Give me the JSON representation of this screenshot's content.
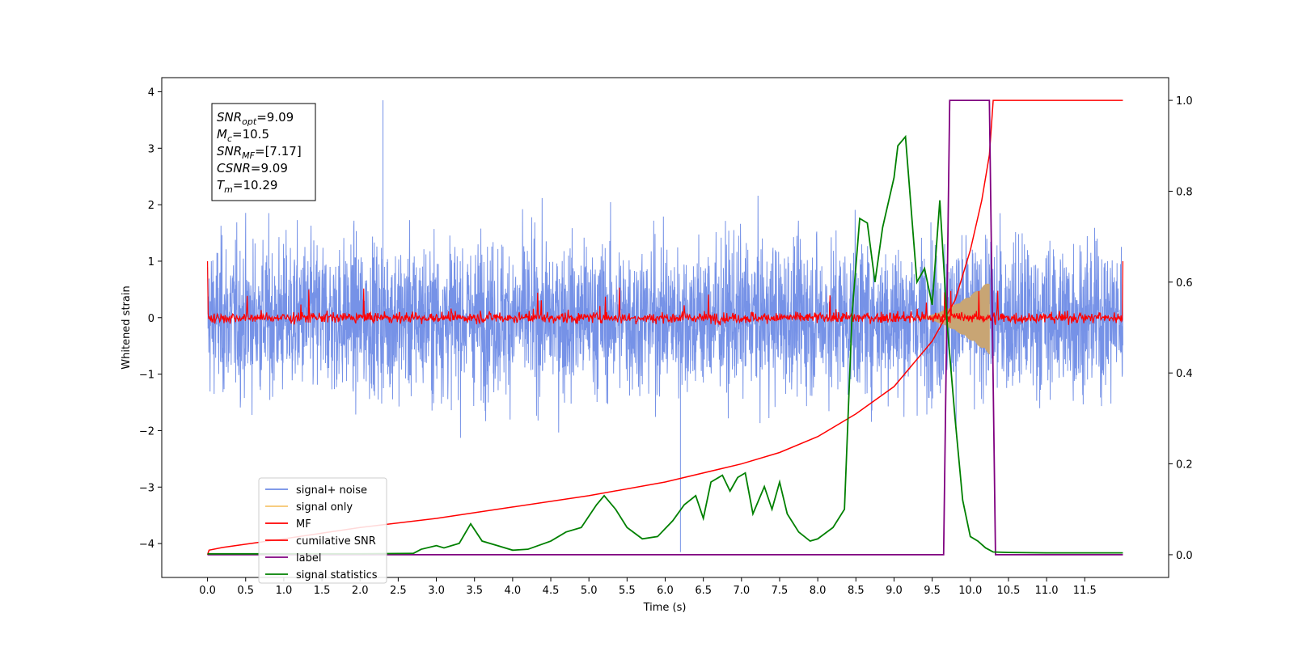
{
  "chart_data": {
    "type": "line",
    "xlabel": "Time (s)",
    "ylabel": "Whitened strain",
    "xlim": [
      -0.6,
      12.6
    ],
    "ylim": [
      -4.6,
      4.25
    ],
    "y2lim": [
      -0.05,
      1.05
    ],
    "xticks": [
      0.0,
      0.5,
      1.0,
      1.5,
      2.0,
      2.5,
      3.0,
      3.5,
      4.0,
      4.5,
      5.0,
      5.5,
      6.0,
      6.5,
      7.0,
      7.5,
      8.0,
      8.5,
      9.0,
      9.5,
      10.0,
      10.5,
      11.0,
      11.5
    ],
    "xtick_labels": [
      "0.0",
      "0.5",
      "1.0",
      "1.5",
      "2.0",
      "2.5",
      "3.0",
      "3.5",
      "4.0",
      "4.5",
      "5.0",
      "5.5",
      "6.0",
      "6.5",
      "7.0",
      "7.5",
      "8.0",
      "8.5",
      "9.0",
      "9.5",
      "10.0",
      "10.5",
      "11.0",
      "11.5"
    ],
    "yticks": [
      4,
      3,
      2,
      1,
      0,
      -1,
      -2,
      -3,
      -4
    ],
    "ytick_labels": [
      "4",
      "3",
      "2",
      "1",
      "0",
      "−1",
      "−2",
      "−3",
      "−4"
    ],
    "y2ticks": [
      1.0,
      0.8,
      0.6,
      0.4,
      0.2,
      0.0
    ],
    "y2tick_labels": [
      "1.0",
      "0.8",
      "0.6",
      "0.4",
      "0.2",
      "0.0"
    ],
    "grid": false,
    "legend_position": "lower-left",
    "legend": [
      {
        "label": "signal+ noise",
        "color": "#6f8ce6"
      },
      {
        "label": "signal only",
        "color": "#f6c56e"
      },
      {
        "label": "MF",
        "color": "#ff0000"
      },
      {
        "label": "cumilative SNR",
        "color": "#ff0000"
      },
      {
        "label": "label",
        "color": "#800080"
      },
      {
        "label": "signal statistics",
        "color": "#008000"
      }
    ],
    "series": [
      {
        "name": "signal+ noise",
        "axis": "left",
        "color": "#6f8ce6",
        "x_range": [
          0.0,
          12.0
        ],
        "approx_envelope": [
          -3.0,
          3.9
        ],
        "notes_values": {
          "peak_time": 2.3,
          "peak_value": 3.85,
          "min_time": 6.2,
          "min_value": -4.15
        }
      },
      {
        "name": "signal only",
        "axis": "left",
        "color": "#c8a574",
        "chirp_start": 9.3,
        "chirp_end": 10.25,
        "chirp_max_amplitude": 0.65
      },
      {
        "name": "MF",
        "axis": "left",
        "color": "#ff0000",
        "x_range": [
          0.0,
          12.0
        ],
        "approx_envelope": [
          -0.2,
          0.55
        ],
        "endpoints_y": 1.0
      },
      {
        "name": "cumilative SNR",
        "axis": "right",
        "color": "#ff0000",
        "x": [
          0.0,
          0.02,
          0.2,
          1.0,
          2.0,
          3.0,
          4.0,
          5.0,
          6.0,
          7.0,
          7.5,
          8.0,
          8.5,
          9.0,
          9.5,
          9.8,
          10.0,
          10.15,
          10.25,
          10.3,
          12.0
        ],
        "y": [
          0.0,
          0.01,
          0.016,
          0.035,
          0.06,
          0.08,
          0.105,
          0.13,
          0.16,
          0.2,
          0.225,
          0.26,
          0.31,
          0.37,
          0.47,
          0.56,
          0.67,
          0.78,
          0.88,
          1.0,
          1.0
        ]
      },
      {
        "name": "label",
        "axis": "right",
        "color": "#800080",
        "x": [
          0.0,
          9.65,
          9.73,
          10.25,
          10.33,
          12.0
        ],
        "y": [
          0.0,
          0.0,
          1.0,
          1.0,
          0.0,
          0.0
        ]
      },
      {
        "name": "signal statistics",
        "axis": "right",
        "color": "#008000",
        "x": [
          0.0,
          1.0,
          2.0,
          2.7,
          2.8,
          3.0,
          3.1,
          3.3,
          3.45,
          3.6,
          3.8,
          4.0,
          4.2,
          4.5,
          4.7,
          4.9,
          5.1,
          5.2,
          5.35,
          5.5,
          5.7,
          5.9,
          6.1,
          6.25,
          6.4,
          6.5,
          6.6,
          6.75,
          6.85,
          6.95,
          7.05,
          7.15,
          7.3,
          7.4,
          7.5,
          7.6,
          7.75,
          7.9,
          8.0,
          8.2,
          8.35,
          8.45,
          8.55,
          8.65,
          8.75,
          8.85,
          9.0,
          9.05,
          9.15,
          9.3,
          9.4,
          9.5,
          9.6,
          9.7,
          9.8,
          9.9,
          10.0,
          10.1,
          10.2,
          10.3,
          10.5,
          11.0,
          12.0
        ],
        "y": [
          0.002,
          0.002,
          0.002,
          0.003,
          0.012,
          0.02,
          0.015,
          0.025,
          0.068,
          0.03,
          0.02,
          0.01,
          0.012,
          0.03,
          0.05,
          0.06,
          0.11,
          0.13,
          0.1,
          0.06,
          0.035,
          0.04,
          0.075,
          0.11,
          0.13,
          0.08,
          0.16,
          0.175,
          0.14,
          0.17,
          0.18,
          0.09,
          0.15,
          0.1,
          0.16,
          0.09,
          0.05,
          0.03,
          0.035,
          0.06,
          0.1,
          0.53,
          0.74,
          0.73,
          0.6,
          0.72,
          0.83,
          0.9,
          0.92,
          0.6,
          0.63,
          0.55,
          0.78,
          0.5,
          0.3,
          0.12,
          0.04,
          0.03,
          0.015,
          0.006,
          0.005,
          0.004,
          0.004
        ]
      }
    ],
    "annotation_box": {
      "position": "top-left",
      "lines": [
        {
          "base": "SNR",
          "sub": "opt",
          "value": "=9.09"
        },
        {
          "base": "M",
          "sub": "c",
          "value": "=10.5"
        },
        {
          "base": "SNR",
          "sub": "MF",
          "value": "=[7.17]"
        },
        {
          "base": "CSNR",
          "sub": "",
          "value": "=9.09"
        },
        {
          "base": "T",
          "sub": "m",
          "value": "=10.29"
        }
      ]
    }
  }
}
